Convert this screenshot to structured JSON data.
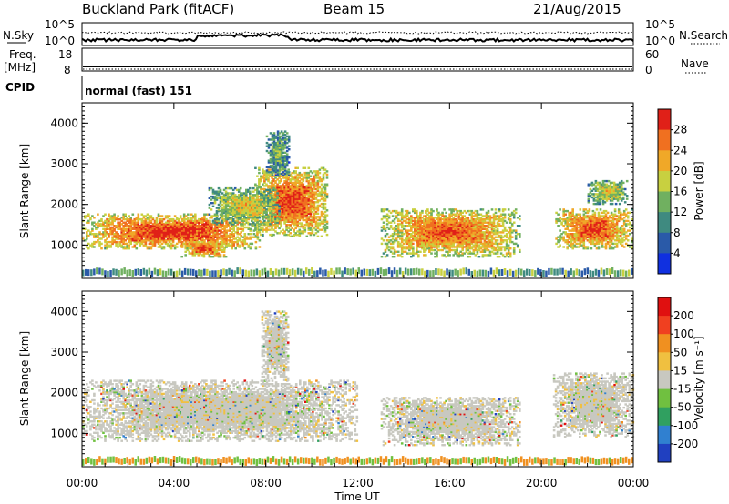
{
  "header": {
    "station": "Buckland Park (fitACF)",
    "beam": "Beam 15",
    "date": "21/Aug/2015"
  },
  "panel_labels": {
    "nsky": "N.Sky",
    "nsearch": "N.Search",
    "freq_top": "Freq.",
    "freq_unit": "[MHz]",
    "nave": "Nave",
    "cpid": "CPID",
    "cpid_value": "normal (fast) 151",
    "noise_ticks_left": [
      "10^5",
      "10^0"
    ],
    "noise_ticks_right": [
      "10^5",
      "10^0"
    ],
    "freq_ticks_left": [
      "18",
      "8"
    ],
    "nave_ticks_right": [
      "60",
      "0"
    ]
  },
  "chart_data": [
    {
      "type": "heatmap",
      "name": "power-panel",
      "ylabel": "Slant Range [km]",
      "ylim": [
        180,
        4500
      ],
      "yticks": [
        "1000",
        "2000",
        "3000",
        "4000"
      ],
      "colorbar": {
        "label": "Power [dB]",
        "ticks": [
          "4",
          "8",
          "12",
          "16",
          "20",
          "24",
          "28"
        ],
        "colors": [
          "#1030e0",
          "#2a5aa8",
          "#3f8a80",
          "#70b060",
          "#c8d040",
          "#f0a828",
          "#f07020",
          "#e02018"
        ]
      },
      "regions": [
        {
          "t0": 0.0,
          "t1": 7.7,
          "r0": 900,
          "r1": 1750,
          "level": 0.95
        },
        {
          "t0": 4.3,
          "t1": 6.3,
          "r0": 700,
          "r1": 1100,
          "level": 0.9
        },
        {
          "t0": 7.5,
          "t1": 10.7,
          "r0": 1200,
          "r1": 2900,
          "level": 0.9
        },
        {
          "t0": 5.5,
          "t1": 8.6,
          "r0": 1500,
          "r1": 2400,
          "level": 0.6
        },
        {
          "t0": 8.0,
          "t1": 9.0,
          "r0": 2700,
          "r1": 3800,
          "level": 0.4
        },
        {
          "t0": 13.0,
          "t1": 19.0,
          "r0": 700,
          "r1": 1900,
          "level": 0.85
        },
        {
          "t0": 20.6,
          "t1": 23.9,
          "r0": 900,
          "r1": 1900,
          "level": 0.9
        },
        {
          "t0": 22.0,
          "t1": 23.7,
          "r0": 2000,
          "r1": 2600,
          "level": 0.6
        }
      ]
    },
    {
      "type": "heatmap",
      "name": "velocity-panel",
      "ylabel": "Slant Range [km]",
      "ylim": [
        180,
        4500
      ],
      "yticks": [
        "1000",
        "2000",
        "3000",
        "4000"
      ],
      "colorbar": {
        "label": "Velocity [m s⁻¹]",
        "ticks": [
          "200",
          "100",
          "50",
          "15",
          "-15",
          "-50",
          "-100",
          "-200"
        ],
        "colors": [
          "#2040c0",
          "#3080d0",
          "#30a060",
          "#70c040",
          "#c8c8c0",
          "#f0c040",
          "#f09020",
          "#f04020",
          "#e01010"
        ]
      },
      "regions": [
        {
          "t0": 0.0,
          "t1": 12.0,
          "r0": 800,
          "r1": 2300,
          "level": 0.5
        },
        {
          "t0": 7.8,
          "t1": 9.0,
          "r0": 2300,
          "r1": 4000,
          "level": 0.2
        },
        {
          "t0": 13.0,
          "t1": 19.0,
          "r0": 700,
          "r1": 1900,
          "level": 0.5
        },
        {
          "t0": 20.5,
          "t1": 24.0,
          "r0": 900,
          "r1": 2500,
          "level": 0.5
        }
      ]
    }
  ],
  "x_axis": {
    "label": "Time UT",
    "ticks": [
      "00:00",
      "04:00",
      "08:00",
      "12:00",
      "16:00",
      "20:00",
      "00:00"
    ]
  }
}
